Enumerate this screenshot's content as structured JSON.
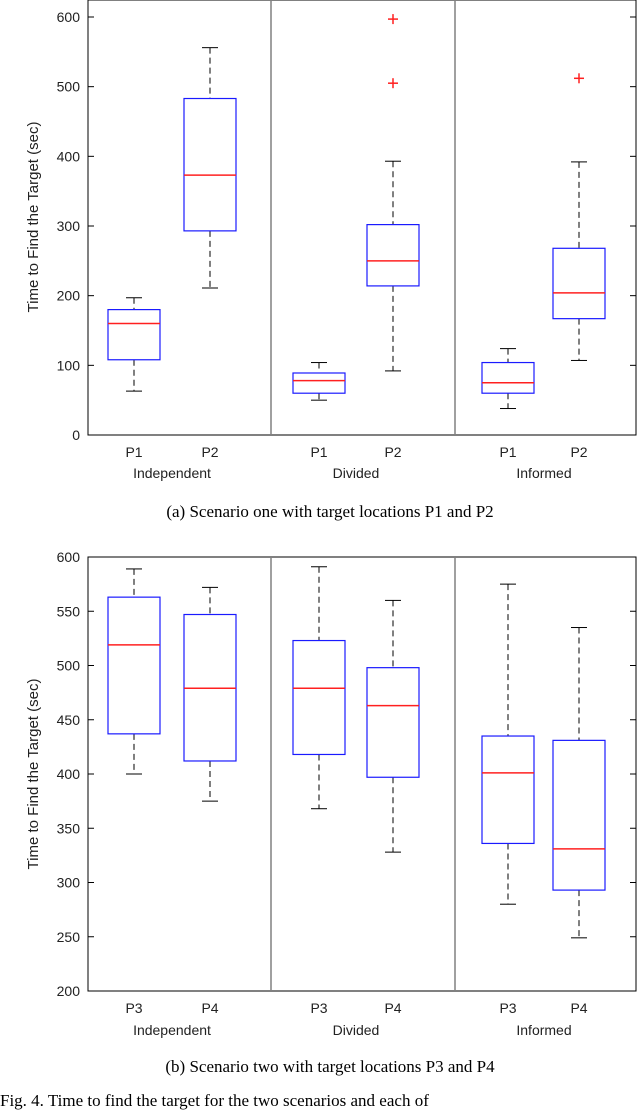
{
  "chart_data": [
    {
      "type": "box",
      "ylabel": "Time to Find the Target (sec)",
      "ylim": [
        0,
        600
      ],
      "yticks": [
        0,
        100,
        200,
        300,
        400,
        500,
        600
      ],
      "groups": [
        {
          "name": "Independent",
          "positions": [
            "P1",
            "P2"
          ]
        },
        {
          "name": "Divided",
          "positions": [
            "P1",
            "P2"
          ]
        },
        {
          "name": "Informed",
          "positions": [
            "P1",
            "P2"
          ]
        }
      ],
      "boxes": [
        {
          "label": "P1",
          "group": "Independent",
          "whisker_low": 63,
          "q1": 108,
          "median": 160,
          "q3": 180,
          "whisker_high": 197,
          "outliers": []
        },
        {
          "label": "P2",
          "group": "Independent",
          "whisker_low": 211,
          "q1": 293,
          "median": 373,
          "q3": 483,
          "whisker_high": 556,
          "outliers": []
        },
        {
          "label": "P1",
          "group": "Divided",
          "whisker_low": 50,
          "q1": 60,
          "median": 78,
          "q3": 89,
          "whisker_high": 104,
          "outliers": []
        },
        {
          "label": "P2",
          "group": "Divided",
          "whisker_low": 92,
          "q1": 214,
          "median": 250,
          "q3": 302,
          "whisker_high": 393,
          "outliers": [
            505,
            597
          ]
        },
        {
          "label": "P1",
          "group": "Informed",
          "whisker_low": 38,
          "q1": 60,
          "median": 75,
          "q3": 104,
          "whisker_high": 124,
          "outliers": []
        },
        {
          "label": "P2",
          "group": "Informed",
          "whisker_low": 107,
          "q1": 167,
          "median": 204,
          "q3": 268,
          "whisker_high": 392,
          "outliers": [
            512
          ]
        }
      ],
      "caption": "(a)  Scenario one with target locations P1 and P2"
    },
    {
      "type": "box",
      "ylabel": "Time to Find the Target (sec)",
      "ylim": [
        200,
        600
      ],
      "yticks": [
        200,
        250,
        300,
        350,
        400,
        450,
        500,
        550,
        600
      ],
      "groups": [
        {
          "name": "Independent",
          "positions": [
            "P3",
            "P4"
          ]
        },
        {
          "name": "Divided",
          "positions": [
            "P3",
            "P4"
          ]
        },
        {
          "name": "Informed",
          "positions": [
            "P3",
            "P4"
          ]
        }
      ],
      "boxes": [
        {
          "label": "P3",
          "group": "Independent",
          "whisker_low": 400,
          "q1": 437,
          "median": 519,
          "q3": 563,
          "whisker_high": 589,
          "outliers": []
        },
        {
          "label": "P4",
          "group": "Independent",
          "whisker_low": 375,
          "q1": 412,
          "median": 479,
          "q3": 547,
          "whisker_high": 572,
          "outliers": []
        },
        {
          "label": "P3",
          "group": "Divided",
          "whisker_low": 368,
          "q1": 418,
          "median": 479,
          "q3": 523,
          "whisker_high": 591,
          "outliers": []
        },
        {
          "label": "P4",
          "group": "Divided",
          "whisker_low": 328,
          "q1": 397,
          "median": 463,
          "q3": 498,
          "whisker_high": 560,
          "outliers": []
        },
        {
          "label": "P3",
          "group": "Informed",
          "whisker_low": 280,
          "q1": 336,
          "median": 401,
          "q3": 435,
          "whisker_high": 575,
          "outliers": []
        },
        {
          "label": "P4",
          "group": "Informed",
          "whisker_low": 249,
          "q1": 293,
          "median": 331,
          "q3": 431,
          "whisker_high": 535,
          "outliers": []
        }
      ],
      "caption": "(b)  Scenario two with target locations P3 and P4"
    }
  ],
  "footer": {
    "text": "Fig. 4.  Time to find the target for the two scenarios and each of"
  },
  "colors": {
    "box": "#1a1aff",
    "median": "#ff2020",
    "whisker": "#000000",
    "outlier": "#ff2020",
    "separator": "#808080"
  }
}
